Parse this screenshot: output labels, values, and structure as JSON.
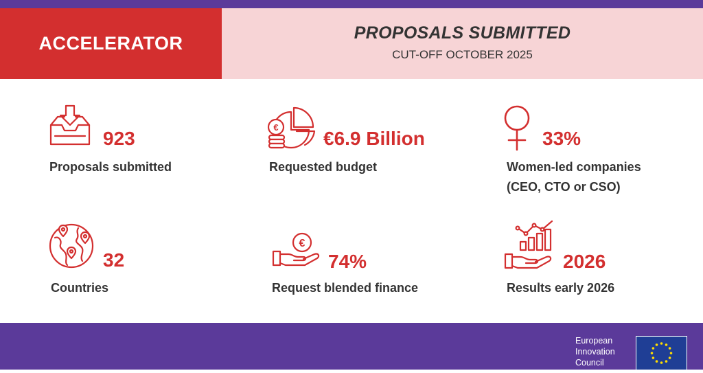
{
  "header": {
    "program": "ACCELERATOR",
    "title": "PROPOSALS SUBMITTED",
    "subtitle": "CUT-OFF OCTOBER 2025"
  },
  "stats": [
    {
      "value": "923",
      "label": "Proposals submitted",
      "icon": "inbox-download-icon"
    },
    {
      "value": "€6.9 Billion",
      "label": "Requested budget",
      "icon": "pie-chart-coins-icon"
    },
    {
      "value": "33%",
      "label": "Women-led companies",
      "label2": "(CEO, CTO or CSO)",
      "icon": "female-symbol-icon"
    },
    {
      "value": "32",
      "label": "Countries",
      "icon": "globe-pins-icon"
    },
    {
      "value": "74%",
      "label": "Request blended finance",
      "icon": "hand-euro-coin-icon"
    },
    {
      "value": "2026",
      "label": "Results early 2026",
      "icon": "hand-growth-chart-icon"
    }
  ],
  "footer": {
    "org_line1": "European",
    "org_line2": "Innovation",
    "org_line3": "Council",
    "flag_icon": "eu-flag-icon"
  },
  "colors": {
    "accent_red": "#d32f2f",
    "purple": "#5b3a9a",
    "pink": "#f7d4d6",
    "text": "#333333"
  }
}
